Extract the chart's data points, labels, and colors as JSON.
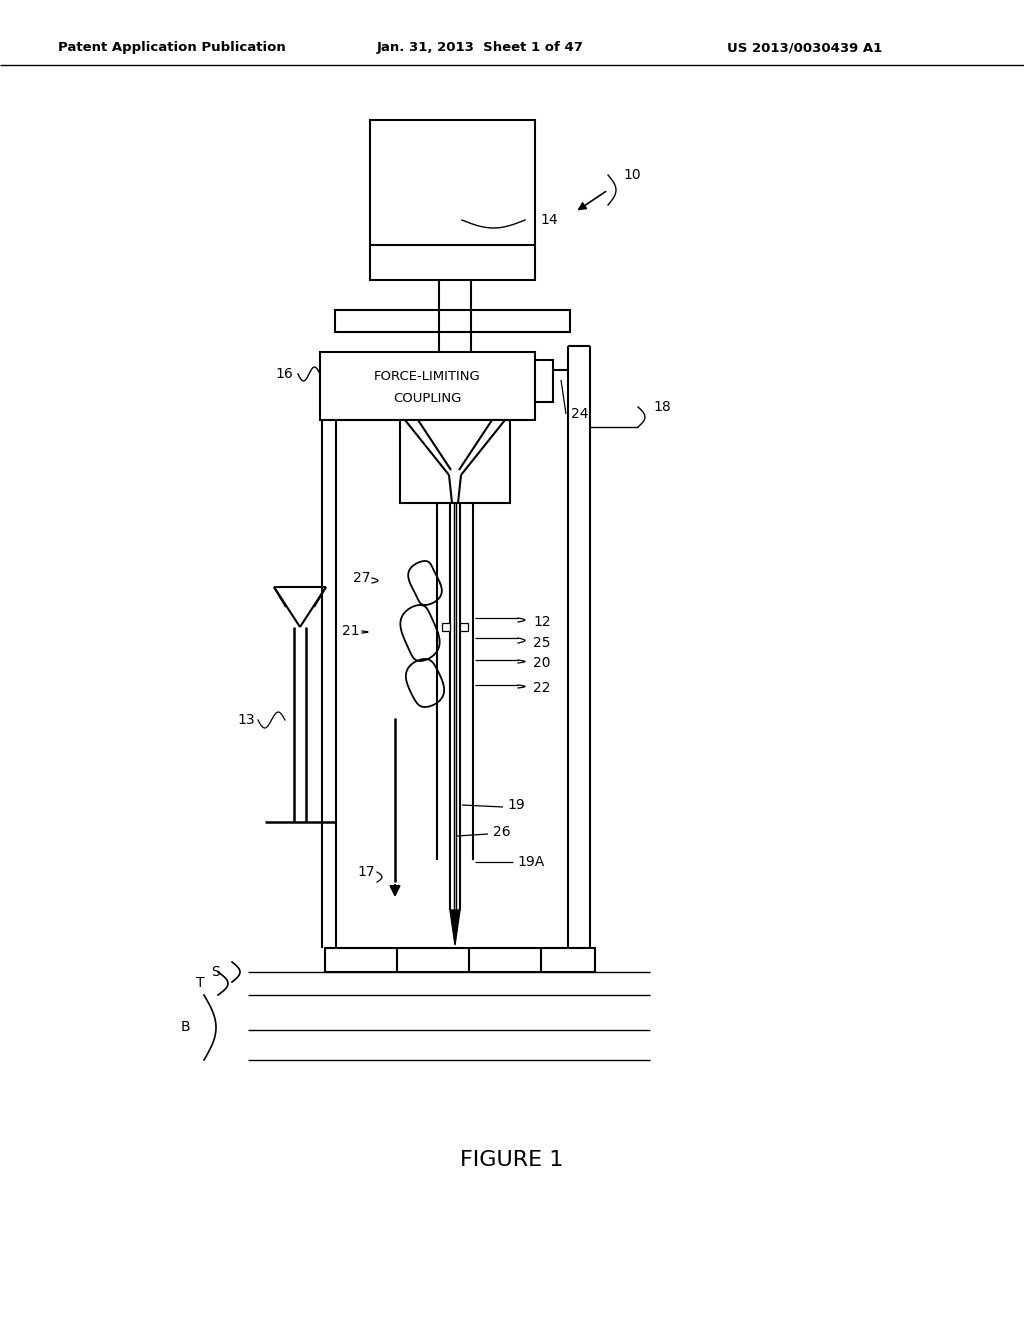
{
  "header_left": "Patent Application Publication",
  "header_center": "Jan. 31, 2013  Sheet 1 of 47",
  "header_right": "US 2013/0030439 A1",
  "figure_caption": "FIGURE 1",
  "bg_color": "#ffffff",
  "line_color": "#000000"
}
